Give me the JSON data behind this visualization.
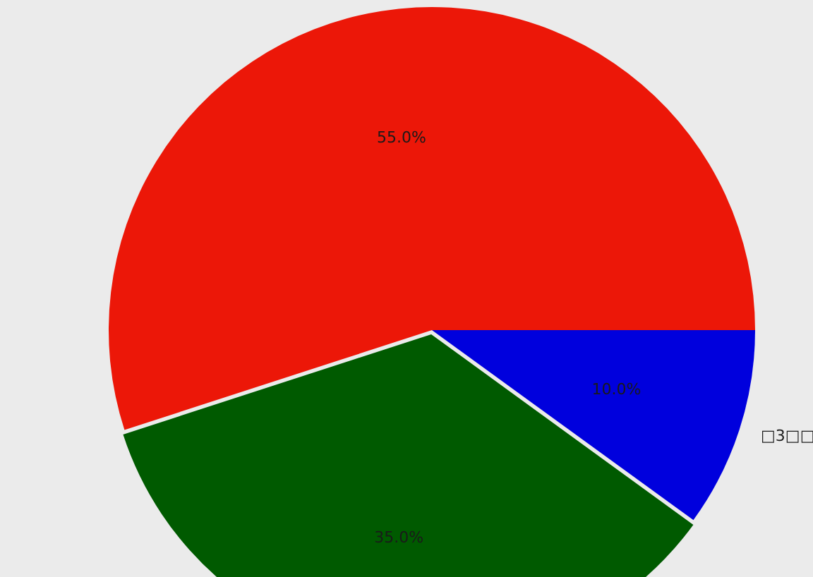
{
  "chart_data": {
    "type": "pie",
    "categories": [
      null,
      null,
      "□3□□"
    ],
    "values": [
      55,
      35,
      10
    ],
    "colors": [
      "#ec1708",
      "#005a00",
      "#0000dd"
    ],
    "value_labels": [
      "55.0%",
      "35.0%",
      "10.0%"
    ]
  }
}
